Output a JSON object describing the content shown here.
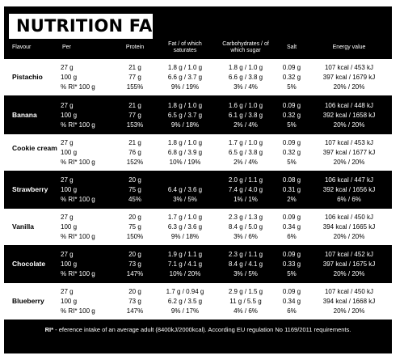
{
  "title": "NUTRITION FACTS",
  "headers": {
    "flavour": "Flavour",
    "per": "Per",
    "protein": "Protein",
    "fat": "Fat / of which saturates",
    "carbs": "Carbohydrates / of which sugar",
    "salt": "Salt",
    "energy": "Energy value"
  },
  "rows": [
    {
      "flavour": "Pistachio",
      "per": [
        "27 g",
        "100 g",
        "% RI* 100 g"
      ],
      "protein": [
        "21 g",
        "77 g",
        "155%"
      ],
      "fat": [
        "1.8 g / 1.0 g",
        "6.6 g / 3.7 g",
        "9% / 19%"
      ],
      "carbs": [
        "1.8 g / 1.0 g",
        "6.6 g / 3.8 g",
        "3% / 4%"
      ],
      "salt": [
        "0.09 g",
        "0.32 g",
        "5%"
      ],
      "energy": [
        "107 kcal / 453 kJ",
        "397 kcal / 1679 kJ",
        "20% / 20%"
      ]
    },
    {
      "flavour": "Banana",
      "per": [
        "27 g",
        "100 g",
        "% RI* 100 g"
      ],
      "protein": [
        "21 g",
        "77 g",
        "153%"
      ],
      "fat": [
        "1.8 g / 1.0 g",
        "6.5 g / 3.7 g",
        "9% / 18%"
      ],
      "carbs": [
        "1.6 g / 1.0 g",
        "6.1 g / 3.8 g",
        "2% / 4%"
      ],
      "salt": [
        "0.09 g",
        "0.32 g",
        "5%"
      ],
      "energy": [
        "106 kcal / 448 kJ",
        "392 kcal / 1658 kJ",
        "20% / 20%"
      ]
    },
    {
      "flavour": "Cookie cream",
      "per": [
        "27 g",
        "100 g",
        "% RI* 100 g"
      ],
      "protein": [
        "21 g",
        "76 g",
        "152%"
      ],
      "fat": [
        "1.8 g / 1.0 g",
        "6.8 g / 3.9 g",
        "10% / 19%"
      ],
      "carbs": [
        "1.7 g / 1.0 g",
        "6.5 g / 3.8 g",
        "2% / 4%"
      ],
      "salt": [
        "0.09 g",
        "0.32 g",
        "5%"
      ],
      "energy": [
        "107 kcal / 453 kJ",
        "397 kcal / 1677 kJ",
        "20% / 20%"
      ]
    },
    {
      "flavour": "Strawberry",
      "per": [
        "27 g",
        "100 g",
        "% RI* 100 g"
      ],
      "protein": [
        "20 g",
        "75 g",
        "45%"
      ],
      "fat": [
        "",
        "6.4 g / 3.6 g",
        "3% / 5%"
      ],
      "carbs": [
        "2.0 g / 1.1 g",
        "7.4 g / 4.0 g",
        "1% / 1%"
      ],
      "salt": [
        "0.08 g",
        "0.31 g",
        "2%"
      ],
      "energy": [
        "106 kcal / 447 kJ",
        "392 kcal / 1656 kJ",
        "6% / 6%"
      ]
    },
    {
      "flavour": "Vanilla",
      "per": [
        "27 g",
        "100 g",
        "% RI* 100 g"
      ],
      "protein": [
        "20 g",
        "75 g",
        "150%"
      ],
      "fat": [
        "1.7 g / 1.0 g",
        "6.3 g / 3.6 g",
        "9% / 18%"
      ],
      "carbs": [
        "2.3 g / 1.3 g",
        "8.4 g / 5.0 g",
        "3% / 6%"
      ],
      "salt": [
        "0.09 g",
        "0.34 g",
        "6%"
      ],
      "energy": [
        "106 kcal / 450 kJ",
        "394 kcal / 1665 kJ",
        "20% / 20%"
      ]
    },
    {
      "flavour": "Chocolate",
      "per": [
        "27 g",
        "100 g",
        "% RI* 100 g"
      ],
      "protein": [
        "20 g",
        "73 g",
        "147%"
      ],
      "fat": [
        "1.9 g / 1.1 g",
        "7.1 g / 4.1 g",
        "10% / 20%"
      ],
      "carbs": [
        "2.3 g / 1.1 g",
        "8.4 g / 4.1 g",
        "3% / 5%"
      ],
      "salt": [
        "0.09 g",
        "0.33 g",
        "5%"
      ],
      "energy": [
        "107 kcal / 452 kJ",
        "397 kcal / 1675 kJ",
        "20% / 20%"
      ]
    },
    {
      "flavour": "Blueberry",
      "per": [
        "27 g",
        "100 g",
        "% RI* 100 g"
      ],
      "protein": [
        "20 g",
        "73 g",
        "147%"
      ],
      "fat": [
        "1.7 g / 0.94 g",
        "6.2 g / 3.5 g",
        "9% / 17%"
      ],
      "carbs": [
        "2.9 g / 1.5 g",
        "11 g / 5.5 g",
        "4% / 6%"
      ],
      "salt": [
        "0.09 g",
        "0.34 g",
        "6%"
      ],
      "energy": [
        "107 kcal / 450 kJ",
        "394 kcal / 1668 kJ",
        "20% / 20%"
      ]
    }
  ],
  "footnote": {
    "label": "RI*",
    "text": " - eference intake of an average adult (8400kJ/2000kcal). According EU regulation No 1169/2011 requirements."
  }
}
